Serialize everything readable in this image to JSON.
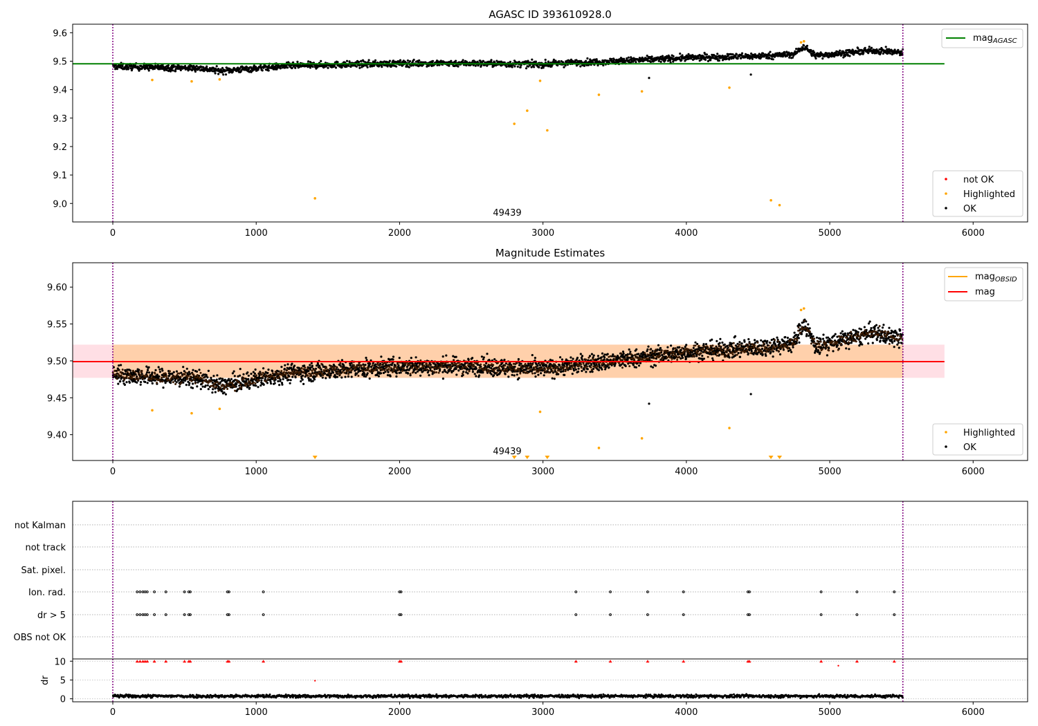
{
  "chart_data": [
    {
      "type": "scatter",
      "title": "AGASC ID 393610928.0",
      "xlim": [
        -280,
        6380
      ],
      "ylim": [
        8.935,
        9.63
      ],
      "x_ticks": [
        "0",
        "1000",
        "2000",
        "3000",
        "4000",
        "5000",
        "6000"
      ],
      "y_ticks": [
        "9.0",
        "9.1",
        "9.2",
        "9.3",
        "9.4",
        "9.5",
        "9.6"
      ],
      "obsid_label": "49439",
      "obsid_bounds": [
        0,
        5510
      ],
      "line_legend": [
        {
          "name": "mag",
          "subscript": "AGASC",
          "color": "#008000"
        }
      ],
      "reference_line": {
        "value": 9.491,
        "x_range": [
          -280,
          5800
        ]
      },
      "point_legend": [
        {
          "name": "not OK",
          "color": "#ff0000"
        },
        {
          "name": "Highlighted",
          "color": "#ffa500"
        },
        {
          "name": "OK",
          "color": "#000000"
        }
      ],
      "trend_ok": [
        [
          0,
          9.482
        ],
        [
          300,
          9.478
        ],
        [
          600,
          9.476
        ],
        [
          750,
          9.466
        ],
        [
          1000,
          9.475
        ],
        [
          1200,
          9.483
        ],
        [
          1500,
          9.487
        ],
        [
          2000,
          9.492
        ],
        [
          2500,
          9.493
        ],
        [
          2800,
          9.49
        ],
        [
          3000,
          9.489
        ],
        [
          3200,
          9.494
        ],
        [
          3500,
          9.5
        ],
        [
          4000,
          9.512
        ],
        [
          4500,
          9.518
        ],
        [
          4750,
          9.524
        ],
        [
          4820,
          9.552
        ],
        [
          4900,
          9.52
        ],
        [
          5100,
          9.528
        ],
        [
          5300,
          9.538
        ],
        [
          5510,
          9.53
        ]
      ],
      "highlighted_points": [
        [
          275,
          9.434
        ],
        [
          550,
          9.429
        ],
        [
          745,
          9.436
        ],
        [
          1410,
          9.018
        ],
        [
          2800,
          9.28
        ],
        [
          2890,
          9.326
        ],
        [
          2980,
          9.431
        ],
        [
          3030,
          9.257
        ],
        [
          3390,
          9.382
        ],
        [
          3690,
          9.394
        ],
        [
          4300,
          9.407
        ],
        [
          4590,
          9.011
        ],
        [
          4650,
          8.994
        ],
        [
          4800,
          9.566
        ],
        [
          4820,
          9.57
        ]
      ],
      "outlier_ok_points": [
        [
          3740,
          9.441
        ],
        [
          4450,
          9.453
        ]
      ]
    },
    {
      "type": "scatter",
      "title": "Magnitude Estimates",
      "xlim": [
        -280,
        6380
      ],
      "ylim": [
        9.365,
        9.633
      ],
      "x_ticks": [
        "0",
        "1000",
        "2000",
        "3000",
        "4000",
        "5000",
        "6000"
      ],
      "y_ticks": [
        "9.40",
        "9.45",
        "9.50",
        "9.55",
        "9.60"
      ],
      "obsid_label": "49439",
      "obsid_bounds": [
        0,
        5510
      ],
      "line_legend": [
        {
          "name": "mag",
          "subscript": "OBSID",
          "color": "#ffa500"
        },
        {
          "name": "mag",
          "subscript": "",
          "color": "#ff0000"
        }
      ],
      "reference_line": {
        "value": 9.499,
        "x_range": [
          -280,
          5800
        ]
      },
      "mag_band": [
        9.477,
        9.522
      ],
      "obsid_band": [
        9.477,
        9.522
      ],
      "point_legend": [
        {
          "name": "Highlighted",
          "color": "#ffa500"
        },
        {
          "name": "OK",
          "color": "#000000"
        }
      ],
      "trend_ok": [
        [
          0,
          9.482
        ],
        [
          300,
          9.478
        ],
        [
          600,
          9.476
        ],
        [
          750,
          9.466
        ],
        [
          1000,
          9.475
        ],
        [
          1200,
          9.483
        ],
        [
          1500,
          9.487
        ],
        [
          2000,
          9.492
        ],
        [
          2500,
          9.493
        ],
        [
          2800,
          9.49
        ],
        [
          3000,
          9.489
        ],
        [
          3200,
          9.494
        ],
        [
          3500,
          9.5
        ],
        [
          4000,
          9.512
        ],
        [
          4500,
          9.518
        ],
        [
          4750,
          9.524
        ],
        [
          4820,
          9.552
        ],
        [
          4900,
          9.52
        ],
        [
          5100,
          9.528
        ],
        [
          5300,
          9.538
        ],
        [
          5510,
          9.53
        ]
      ],
      "highlighted_points": [
        [
          275,
          9.433
        ],
        [
          550,
          9.429
        ],
        [
          745,
          9.435
        ],
        [
          2980,
          9.431
        ],
        [
          3390,
          9.382
        ],
        [
          3690,
          9.395
        ],
        [
          4300,
          9.409
        ],
        [
          4800,
          9.569
        ],
        [
          4820,
          9.571
        ]
      ],
      "highlighted_below_axis": [
        1410,
        2800,
        2890,
        3030,
        4590,
        4650
      ],
      "outlier_ok_points": [
        [
          3740,
          9.442
        ],
        [
          4450,
          9.455
        ]
      ]
    },
    {
      "type": "scatter",
      "title": "",
      "xlim": [
        -280,
        6380
      ],
      "x_ticks": [
        "0",
        "1000",
        "2000",
        "3000",
        "4000",
        "5000",
        "6000"
      ],
      "flag_rows": [
        "not Kalman",
        "not track",
        "Sat. pixel.",
        "Ion. rad.",
        "dr > 5",
        "OBS not OK"
      ],
      "flag_events_x": [
        170,
        190,
        210,
        225,
        240,
        290,
        370,
        500,
        530,
        540,
        800,
        810,
        1050,
        2000,
        2010,
        3230,
        3470,
        3730,
        3980,
        4430,
        4440,
        4940,
        5190,
        5450
      ],
      "dr_panel": {
        "ylabel": "dr",
        "ylim": [
          -0.8,
          10.6
        ],
        "y_ticks": [
          "0",
          "5",
          "10"
        ],
        "clipped_value": 10,
        "extra_points": [
          [
            1410,
            4.8
          ],
          [
            5060,
            8.8
          ]
        ]
      }
    }
  ]
}
